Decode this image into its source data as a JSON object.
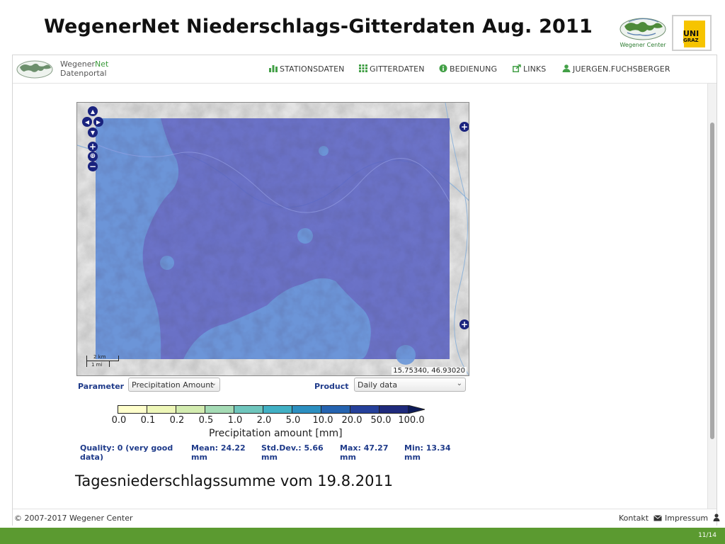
{
  "slide": {
    "title": "WegenerNet Niederschlags-Gitterdaten Aug. 2011",
    "caption": "Tagesniederschlagssumme vom 19.8.2011",
    "page_number": "11/14"
  },
  "logos": {
    "wegener_center_text": "Wegener Center",
    "uni_graz_top": "UNI",
    "uni_graz_bottom": "GRAZ"
  },
  "portal": {
    "name_part1": "Wegener",
    "name_part2": "Net",
    "subtitle": "Datenportal",
    "nav": [
      {
        "label": "STATIONSDATEN",
        "icon": "bar-chart-icon"
      },
      {
        "label": "GITTERDATEN",
        "icon": "grid-icon"
      },
      {
        "label": "BEDIENUNG",
        "icon": "info-icon"
      },
      {
        "label": "LINKS",
        "icon": "external-link-icon"
      },
      {
        "label": "JUERGEN.FUCHSBERGER",
        "icon": "user-icon"
      }
    ]
  },
  "map": {
    "coordinates": "15.75340, 46.93020",
    "scale_km": "2 km",
    "scale_mi": "1 mi",
    "fill_color": "#5b63c4",
    "light_color": "#6d98d9"
  },
  "form": {
    "parameter_label": "Parameter",
    "parameter_value": "Precipitation Amount",
    "product_label": "Product",
    "product_value": "Daily data"
  },
  "colorbar": {
    "ticks": [
      "0.0",
      "0.1",
      "0.2",
      "0.5",
      "1.0",
      "2.0",
      "5.0",
      "10.0",
      "20.0",
      "50.0",
      "100.0"
    ],
    "colors": [
      "#ffffcc",
      "#eef7b8",
      "#d3ecb0",
      "#a5dbb5",
      "#6fc6bd",
      "#41b0c4",
      "#2c8fc0",
      "#2563b0",
      "#25409a",
      "#1f2a7c",
      "#0d1a58"
    ],
    "label": "Precipitation amount [mm]"
  },
  "stats": {
    "quality": "Quality: 0 (very good data)",
    "mean": "Mean: 24.22 mm",
    "std": "Std.Dev.: 5.66 mm",
    "max": "Max: 47.27 mm",
    "min": "Min: 13.34 mm"
  },
  "footer": {
    "copyright": "© 2007-2017 Wegener Center",
    "kontakt": "Kontakt",
    "impressum": "Impressum"
  }
}
